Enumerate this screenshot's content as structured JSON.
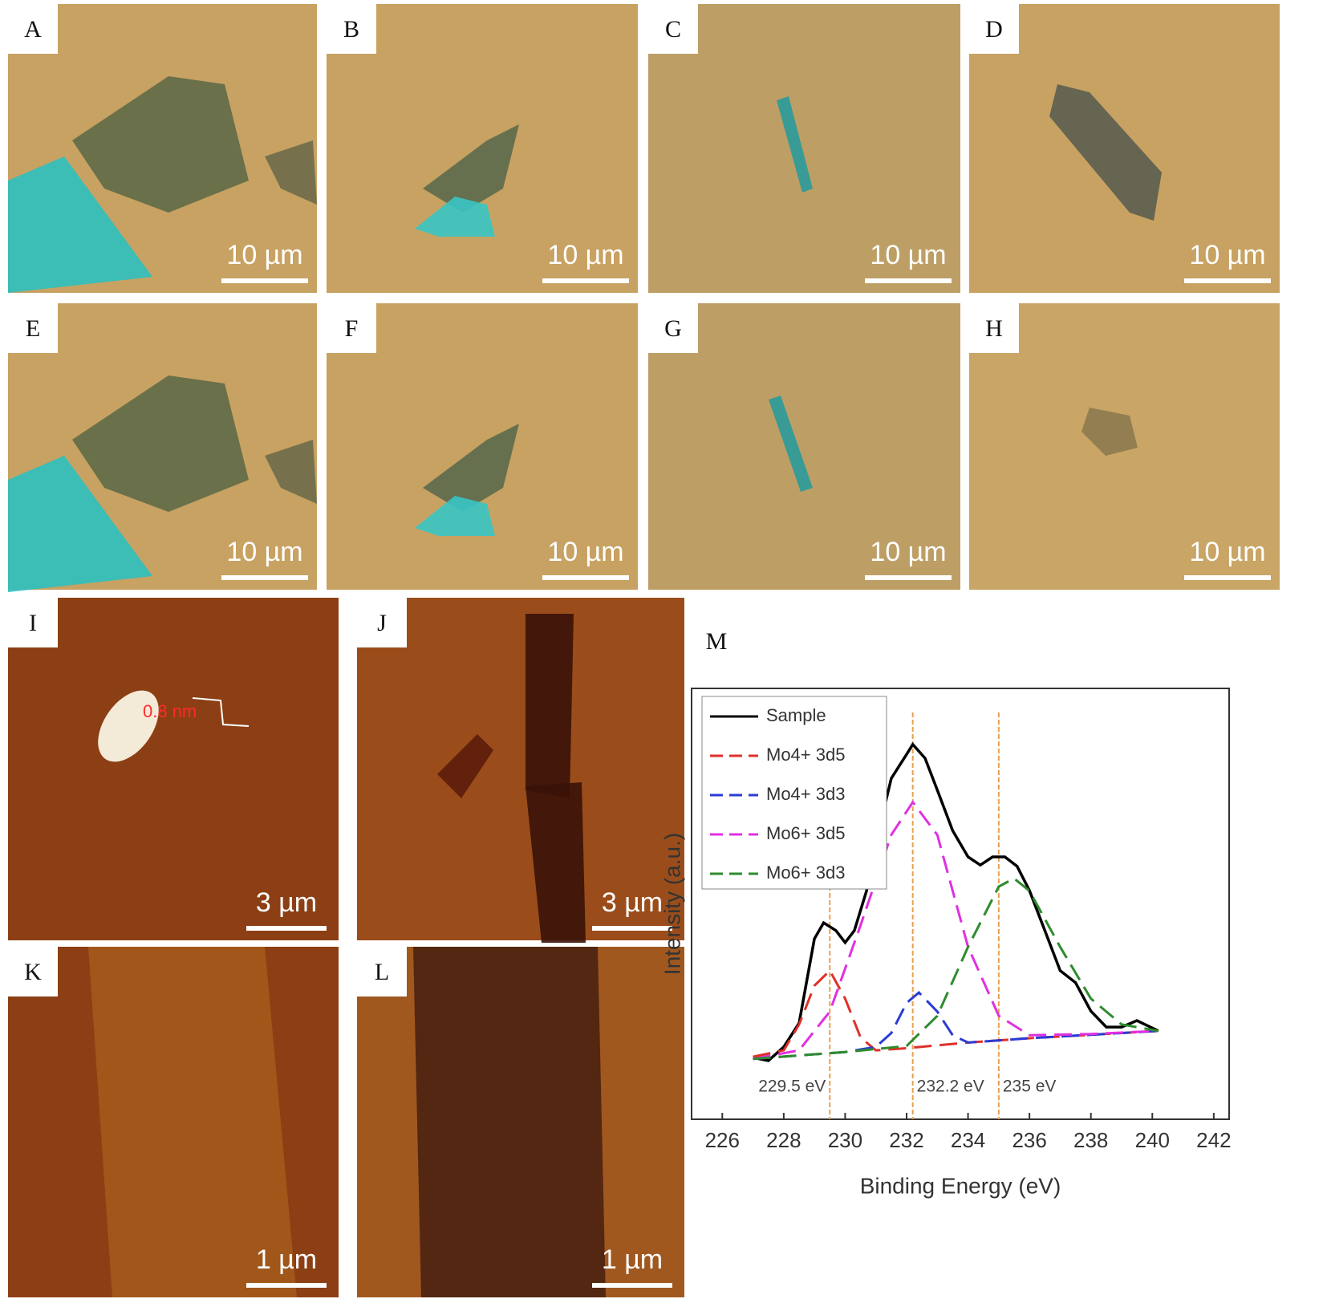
{
  "panels": [
    {
      "label": "A",
      "scale_bar": "10 µm"
    },
    {
      "label": "B",
      "scale_bar": "10 µm"
    },
    {
      "label": "C",
      "scale_bar": "10 µm"
    },
    {
      "label": "D",
      "scale_bar": "10 µm"
    },
    {
      "label": "E",
      "scale_bar": "10 µm"
    },
    {
      "label": "F",
      "scale_bar": "10 µm"
    },
    {
      "label": "G",
      "scale_bar": "10 µm"
    },
    {
      "label": "H",
      "scale_bar": "10 µm"
    },
    {
      "label": "I",
      "scale_bar": "3 µm",
      "annotation": "0.8 nm"
    },
    {
      "label": "J",
      "scale_bar": "3 µm"
    },
    {
      "label": "K",
      "scale_bar": "1 µm"
    },
    {
      "label": "L",
      "scale_bar": "1 µm"
    }
  ],
  "chart_data": {
    "type": "line",
    "panel_label": "M",
    "x_label": "Binding Energy (eV)",
    "y_label": "Intensity (a.u.)",
    "xlim": [
      225,
      242.5
    ],
    "xticks": [
      226,
      228,
      230,
      232,
      234,
      236,
      238,
      240,
      242
    ],
    "ylim": [
      0,
      100
    ],
    "series": [
      {
        "name": "Sample",
        "color": "#000000",
        "style": "solid",
        "x": [
          227.0,
          227.5,
          228,
          228.5,
          229,
          229.3,
          229.7,
          230,
          230.3,
          230.7,
          231,
          231.5,
          232,
          232.2,
          232.6,
          233,
          233.5,
          234,
          234.4,
          234.8,
          235.2,
          235.6,
          236,
          236.5,
          237,
          237.5,
          238,
          238.5,
          239,
          239.5,
          240.2
        ],
        "values": [
          14.3,
          13.6,
          16.8,
          22.3,
          41.9,
          45.6,
          43.8,
          41.0,
          43.8,
          53.1,
          64.2,
          79.1,
          84.7,
          87.0,
          83.8,
          76.4,
          67.0,
          60.9,
          59.0,
          60.9,
          60.9,
          58.7,
          53.1,
          43.8,
          34.5,
          31.7,
          25.1,
          21.4,
          21.4,
          22.9,
          20.5
        ]
      },
      {
        "name": "Mo4+ 3d5",
        "color": "#e0302a",
        "style": "dashed",
        "x": [
          227,
          228,
          228.5,
          229,
          229.5,
          230,
          230.5,
          231,
          232,
          234,
          236,
          238,
          240.2
        ],
        "values": [
          14.5,
          16,
          22,
          31,
          34.5,
          28,
          19,
          16,
          16.5,
          17.8,
          18.8,
          19.6,
          20.5
        ]
      },
      {
        "name": "Mo4+ 3d3",
        "color": "#2a3bd6",
        "style": "dashed",
        "x": [
          227,
          230,
          231,
          231.5,
          232,
          232.4,
          233,
          233.5,
          234,
          236,
          238,
          240.2
        ],
        "values": [
          14,
          15.6,
          16.8,
          20,
          27,
          29.4,
          25,
          19.5,
          17.8,
          18.8,
          19.6,
          20.5
        ]
      },
      {
        "name": "Mo6+ 3d5",
        "color": "#e030e0",
        "style": "dashed",
        "x": [
          227,
          228.5,
          229.5,
          230.5,
          231.5,
          232.2,
          233,
          234,
          235,
          236,
          238,
          240.2
        ],
        "values": [
          14,
          16,
          25,
          45,
          66,
          73.6,
          66,
          40,
          24,
          19.5,
          19.8,
          20.5
        ]
      },
      {
        "name": "Mo6+ 3d3",
        "color": "#2e8b2e",
        "style": "dashed",
        "x": [
          227,
          230,
          232,
          233,
          234,
          235,
          235.5,
          236,
          237,
          238,
          239,
          240.2
        ],
        "values": [
          14,
          15.6,
          17,
          24,
          40,
          54,
          55.9,
          53,
          40,
          28,
          22,
          20.5
        ]
      }
    ],
    "reference_lines": [
      {
        "x": 229.5,
        "label": "229.5 eV"
      },
      {
        "x": 232.2,
        "label": "232.2 eV"
      },
      {
        "x": 235,
        "label": "235 eV"
      }
    ],
    "reference_color": "#e8a050"
  }
}
